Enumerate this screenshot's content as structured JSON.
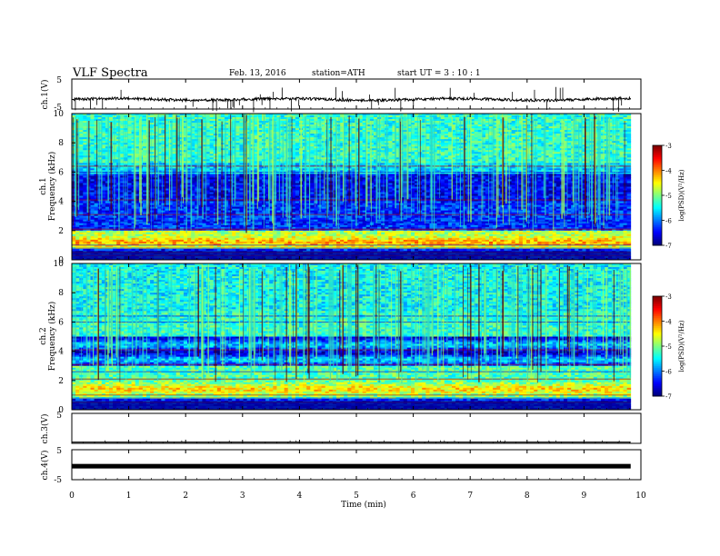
{
  "header": {
    "title": "VLF  Spectra",
    "date": "Feb. 13, 2016",
    "station": "station=ATH",
    "start": "start  UT  =   3  : 10 : 1"
  },
  "chart_data": [
    {
      "type": "line",
      "name": "ch1-voltage",
      "ylabel": "ch.1(V)",
      "ylim": [
        -5,
        5
      ],
      "yticks": [
        "5",
        "-5"
      ],
      "xlim": [
        0,
        10
      ],
      "baseline": -1.8,
      "data_end_min": 9.82
    },
    {
      "type": "heatmap",
      "name": "ch1-spectrogram",
      "ylabel": "Frequency  (kHz)",
      "ylabel2": "ch.1",
      "ylim": [
        0,
        10
      ],
      "yticks": [
        "0",
        "2",
        "4",
        "6",
        "8",
        "10"
      ],
      "xlim": [
        0,
        10
      ],
      "data_end_min": 9.82,
      "colorbar": {
        "label": "log(PSD)(V²/Hz)",
        "range": [
          -7,
          -3
        ],
        "ticks": [
          "-3",
          "-4",
          "-5",
          "-6",
          "-7"
        ]
      }
    },
    {
      "type": "heatmap",
      "name": "ch2-spectrogram",
      "ylabel": "Frequency  (kHz)",
      "ylabel2": "ch.2",
      "ylim": [
        0,
        10
      ],
      "yticks": [
        "0",
        "2",
        "4",
        "6",
        "8",
        "10"
      ],
      "xlim": [
        0,
        10
      ],
      "data_end_min": 9.82,
      "colorbar": {
        "label": "log(PSD)(V²/Hz)",
        "range": [
          -7,
          -3
        ],
        "ticks": [
          "-3",
          "-4",
          "-5",
          "-6",
          "-7"
        ]
      }
    },
    {
      "type": "line",
      "name": "ch3-voltage",
      "ylabel": "ch.3(V)",
      "ylim": [
        -5,
        5
      ],
      "yticks": [
        "5"
      ],
      "xlim": [
        0,
        10
      ],
      "baseline": -4.6,
      "data_end_min": 9.82
    },
    {
      "type": "line",
      "name": "ch4-voltage",
      "ylabel": "ch.4(V)",
      "ylim": [
        -5,
        5
      ],
      "yticks": [
        "5",
        "-5"
      ],
      "xlim": [
        0,
        10
      ],
      "baseline": -0.5,
      "data_end_min": 9.82
    }
  ],
  "xaxis": {
    "label": "Time  (min)",
    "ticks": [
      "0",
      "1",
      "2",
      "3",
      "4",
      "5",
      "6",
      "7",
      "8",
      "9",
      "10"
    ]
  }
}
